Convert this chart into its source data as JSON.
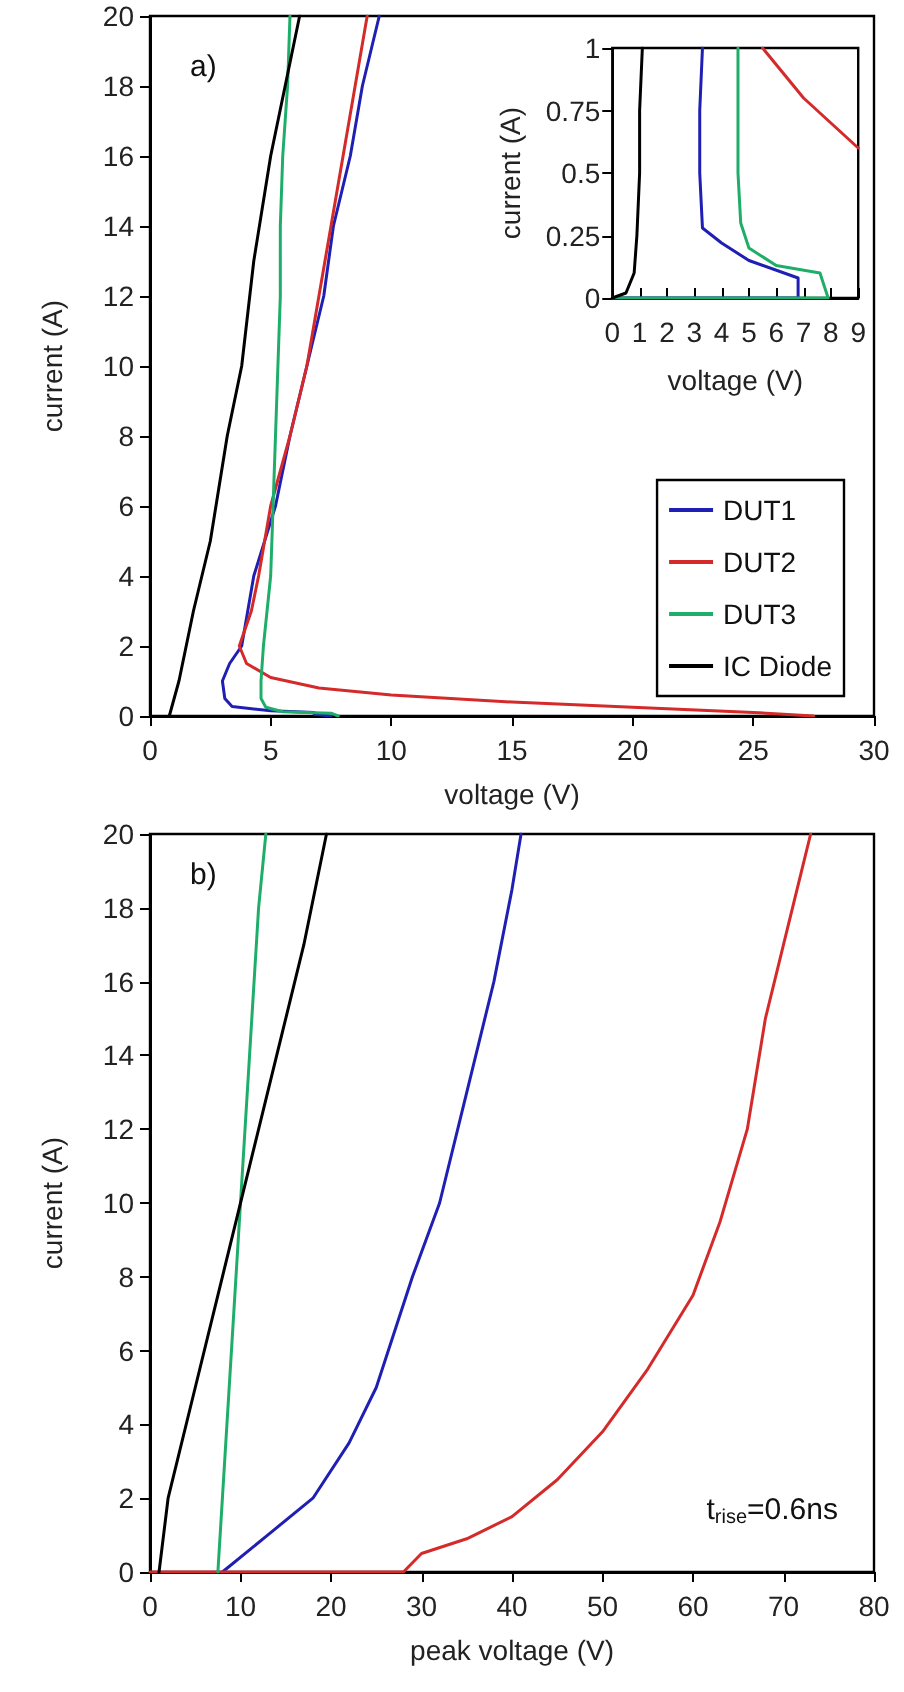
{
  "chart_data": [
    {
      "type": "line",
      "xlabel": "voltage (V)",
      "ylabel": "current (A)",
      "annotations": [
        "a)"
      ],
      "xlim": [
        0,
        30
      ],
      "xticks": [
        0,
        5,
        10,
        15,
        20,
        25,
        30
      ],
      "ylim": [
        0,
        20
      ],
      "yticks": [
        0,
        2,
        4,
        6,
        8,
        10,
        12,
        14,
        16,
        18,
        20
      ],
      "grid": false,
      "legend": "bottom right",
      "marker": "none",
      "line_style": "solid",
      "series": [
        {
          "name": "DUT1",
          "color": "#1f1fb4",
          "x": [
            7.5,
            6.8,
            6.8,
            5,
            3.4,
            3.1,
            3,
            3.3,
            3.8,
            4.3,
            5.2,
            5.8,
            6.5,
            7.2,
            7.6,
            8.3,
            8.8,
            9.5
          ],
          "values": [
            0,
            0.05,
            0.1,
            0.15,
            0.27,
            0.5,
            1,
            1.5,
            2,
            4,
            6,
            8,
            10,
            12,
            14,
            16,
            18,
            20
          ]
        },
        {
          "name": "DUT2",
          "color": "#d42a2a",
          "x": [
            27.5,
            25,
            20,
            15,
            10,
            7,
            5,
            4,
            3.7,
            4.2,
            4.5,
            5,
            5.8,
            6.5,
            7,
            7.5,
            8,
            8.5,
            9
          ],
          "values": [
            0,
            0.1,
            0.25,
            0.4,
            0.6,
            0.8,
            1.1,
            1.5,
            2,
            3,
            4,
            6,
            8,
            10,
            12,
            14,
            16,
            18,
            20
          ]
        },
        {
          "name": "DUT3",
          "color": "#1fae6a",
          "x": [
            7.8,
            7.5,
            5.5,
            4.8,
            4.6,
            4.6,
            4.7,
            5,
            5.1,
            5.2,
            5.3,
            5.4,
            5.4,
            5.5,
            5.7,
            5.8
          ],
          "values": [
            0,
            0.08,
            0.12,
            0.25,
            0.5,
            1,
            2,
            4,
            6,
            8,
            10,
            12,
            14,
            16,
            18,
            20
          ]
        },
        {
          "name": "IC Diode",
          "color": "#000000",
          "x": [
            0.8,
            1.2,
            1.8,
            2.5,
            3.2,
            3.8,
            4.3,
            5,
            5.6,
            6.2
          ],
          "values": [
            0,
            1,
            3,
            5,
            8,
            10,
            13,
            16,
            18,
            20
          ]
        }
      ]
    },
    {
      "type": "line",
      "xlabel": "voltage (V)",
      "ylabel": "current (A)",
      "xlim": [
        0,
        9
      ],
      "xticks": [
        0,
        1,
        2,
        3,
        4,
        5,
        6,
        7,
        8,
        9
      ],
      "ylim": [
        0,
        1
      ],
      "yticks": [
        0,
        0.25,
        0.5,
        0.75,
        1
      ],
      "grid": false,
      "legend": false,
      "marker": "none",
      "line_style": "solid",
      "series": [
        {
          "color": "#1f1fb4",
          "x": [
            0,
            6.8,
            6.8,
            5,
            4,
            3.3,
            3.2,
            3.2,
            3.3
          ],
          "values": [
            0,
            0,
            0.08,
            0.15,
            0.22,
            0.28,
            0.5,
            0.75,
            1
          ]
        },
        {
          "color": "#d42a2a",
          "x": [
            5.5,
            7,
            9
          ],
          "values": [
            1,
            0.8,
            0.6
          ]
        },
        {
          "color": "#1fae6a",
          "x": [
            0,
            7.9,
            7.6,
            6,
            5,
            4.7,
            4.6,
            4.6,
            4.6
          ],
          "values": [
            0,
            0,
            0.1,
            0.13,
            0.2,
            0.3,
            0.5,
            0.75,
            1
          ]
        },
        {
          "color": "#000000",
          "x": [
            0,
            0.5,
            0.8,
            0.9,
            1,
            1,
            1.1
          ],
          "values": [
            0,
            0.02,
            0.1,
            0.25,
            0.5,
            0.75,
            1
          ]
        }
      ]
    },
    {
      "type": "line",
      "xlabel": "peak voltage (V)",
      "ylabel": "current (A)",
      "annotations": [
        "b)",
        "t$_{rise}$=0.6ns"
      ],
      "xlim": [
        0,
        80
      ],
      "xticks": [
        0,
        10,
        20,
        30,
        40,
        50,
        60,
        70,
        80
      ],
      "ylim": [
        0,
        20
      ],
      "yticks": [
        0,
        2,
        4,
        6,
        8,
        10,
        12,
        14,
        16,
        18,
        20
      ],
      "grid": false,
      "legend": false,
      "marker": "none",
      "line_style": "solid",
      "series": [
        {
          "color": "#1f1fb4",
          "x": [
            8,
            13,
            18,
            22,
            25,
            29,
            32,
            35,
            38,
            40,
            41
          ],
          "values": [
            0,
            1,
            2,
            3.5,
            5,
            8,
            10,
            13,
            16,
            18.5,
            20
          ]
        },
        {
          "color": "#d42a2a",
          "x": [
            0,
            28,
            30,
            35,
            40,
            45,
            50,
            55,
            60,
            63,
            66,
            68,
            70,
            72,
            73
          ],
          "values": [
            0,
            0,
            0.5,
            0.9,
            1.5,
            2.5,
            3.8,
            5.5,
            7.5,
            9.5,
            12,
            15,
            17,
            19,
            20
          ]
        },
        {
          "color": "#1fae6a",
          "x": [
            7.5,
            8,
            9,
            10,
            11,
            12,
            12.8
          ],
          "values": [
            0,
            2,
            6,
            10,
            14,
            18,
            20
          ]
        },
        {
          "color": "#000000",
          "x": [
            1,
            2,
            5,
            8,
            11,
            14,
            17,
            19.5
          ],
          "values": [
            0,
            2,
            5,
            8,
            11,
            14,
            17,
            20
          ]
        }
      ]
    }
  ]
}
